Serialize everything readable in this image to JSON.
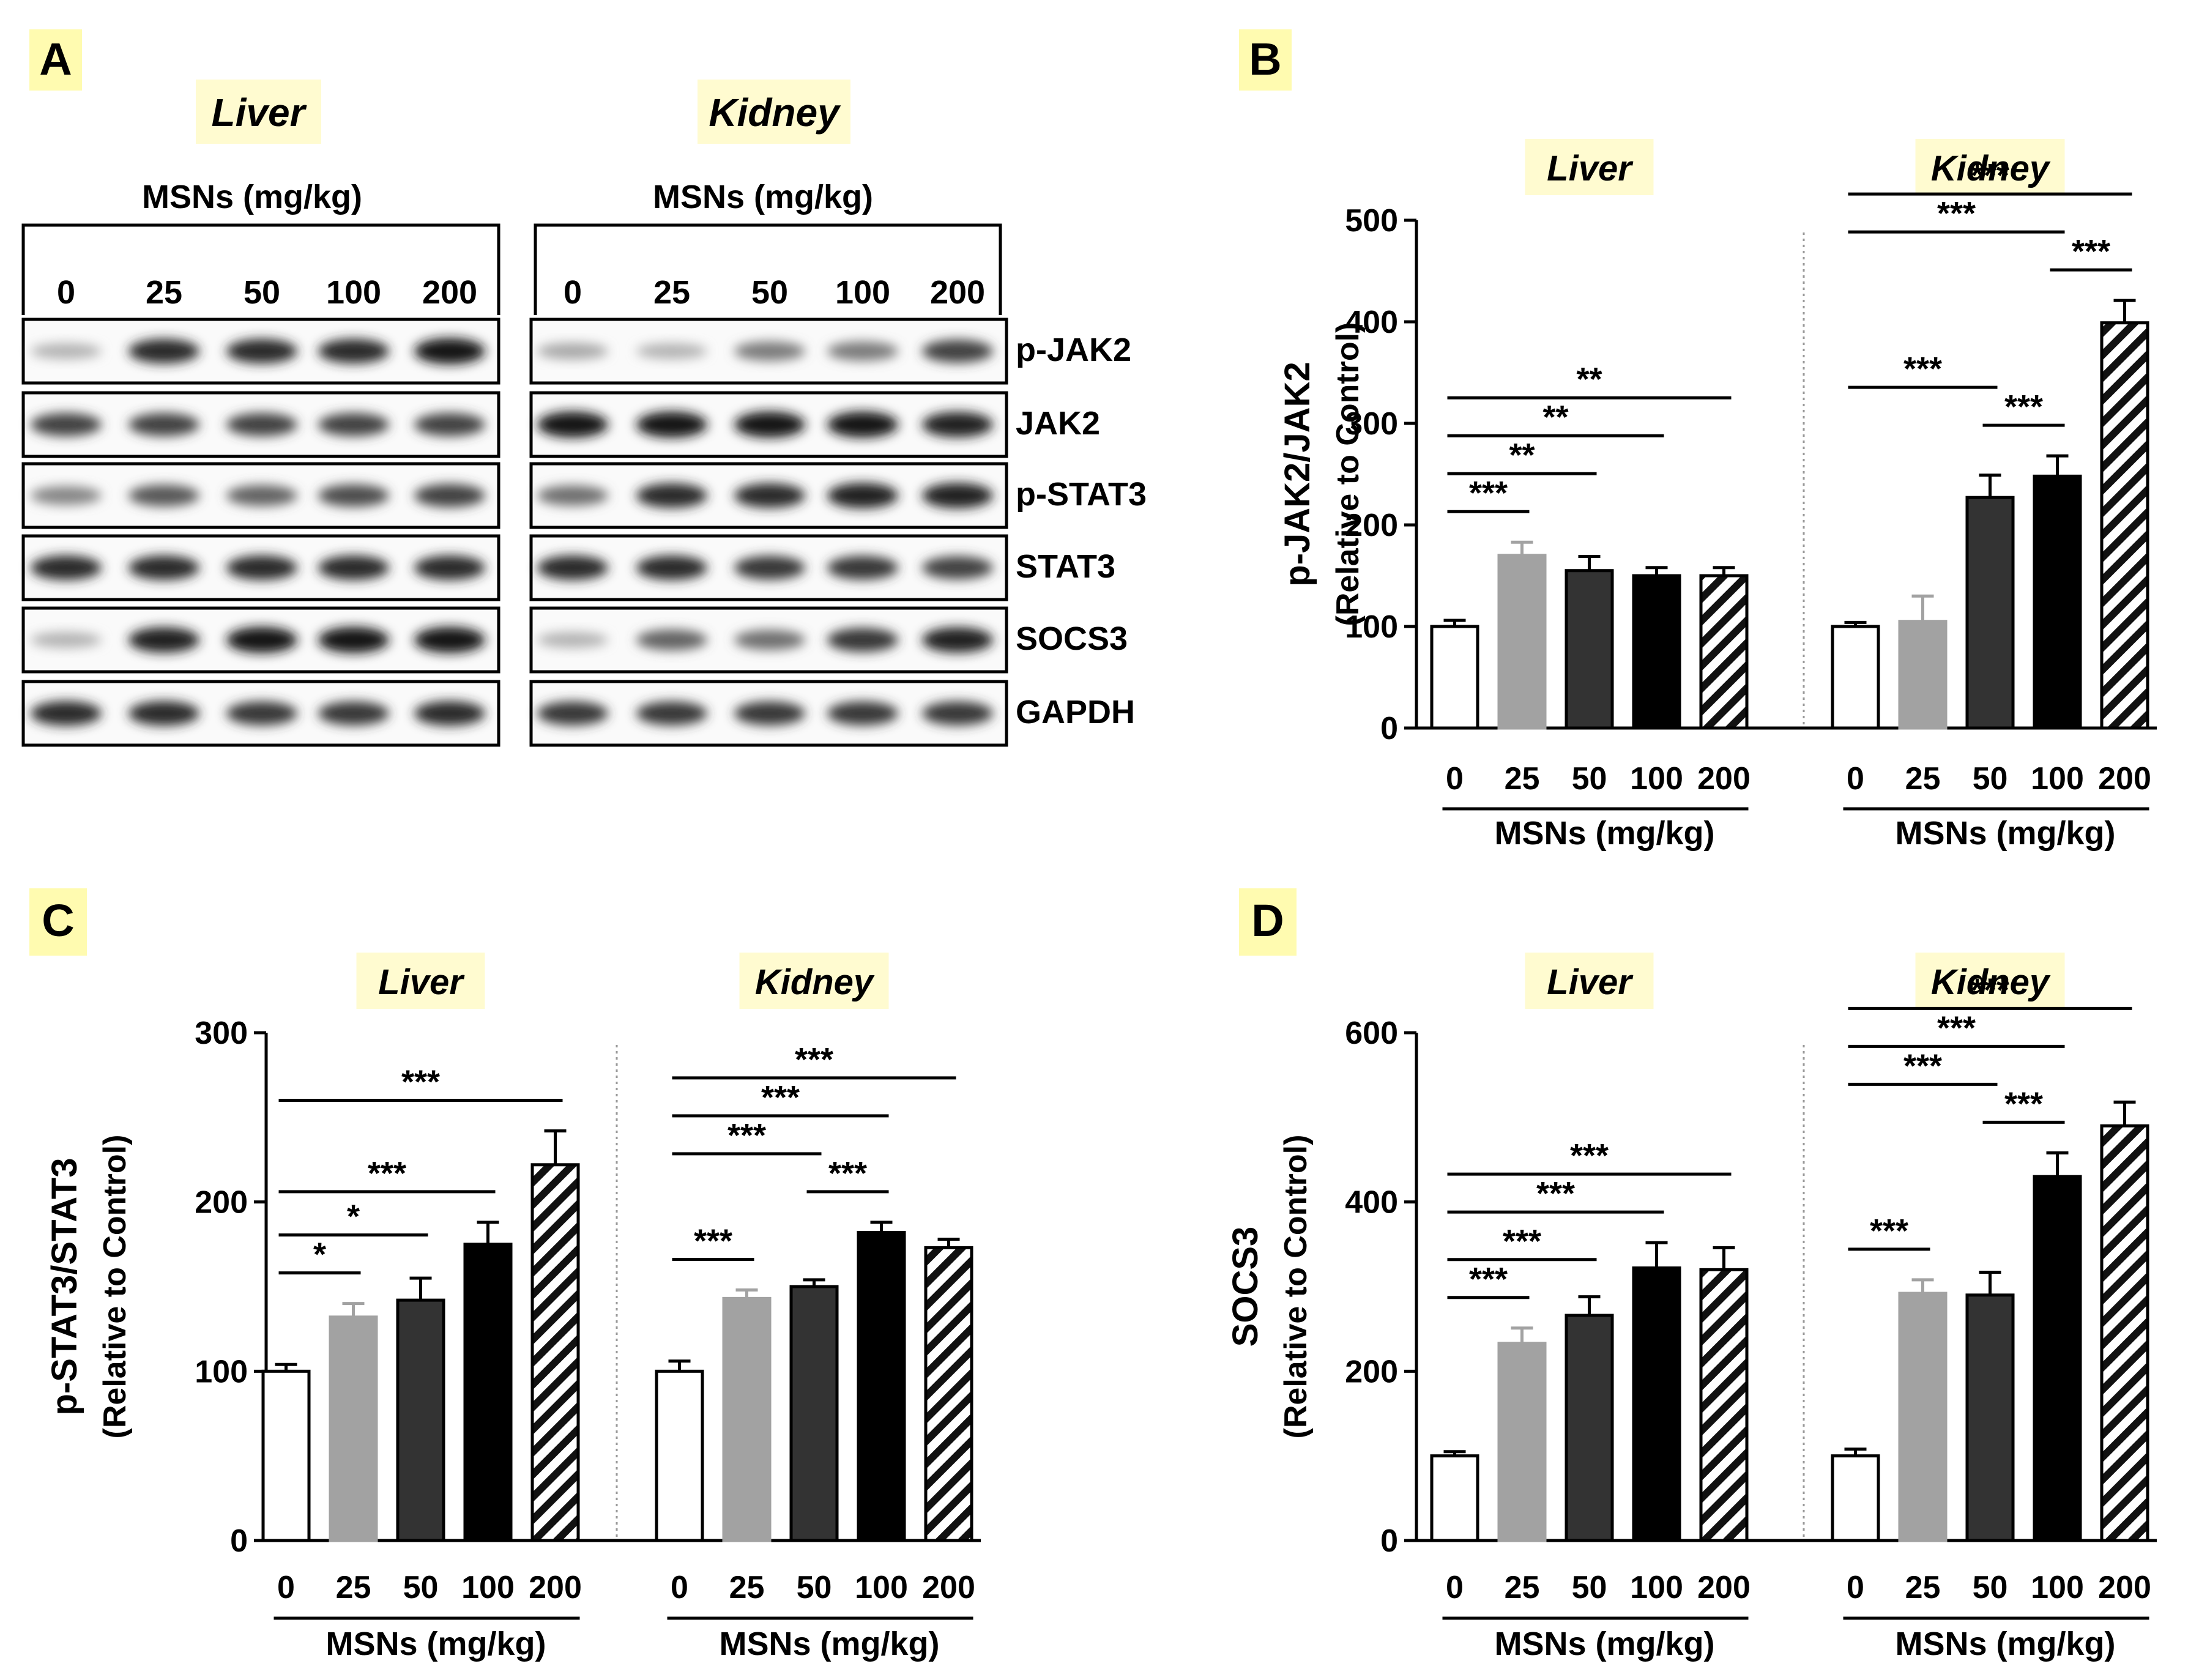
{
  "panel_a": {
    "label": "A",
    "liver_title": "Liver",
    "kidney_title": "Kidney",
    "dose_label": "MSNs (mg/kg)",
    "doses": [
      "0",
      "25",
      "50",
      "100",
      "200"
    ],
    "proteins": [
      "p-JAK2",
      "JAK2",
      "p-STAT3",
      "STAT3",
      "SOCS3",
      "GAPDH"
    ]
  },
  "chart_data": [
    {
      "panel": "B",
      "type": "bar",
      "ylabel": "p-JAK2/JAK2",
      "ylabel2": "(Relative to Control)",
      "ylim": [
        0,
        500
      ],
      "yticks": [
        "0",
        "100",
        "200",
        "300",
        "400",
        "500"
      ],
      "groups": [
        {
          "name": "Liver",
          "categories": [
            "0",
            "25",
            "50",
            "100",
            "200"
          ],
          "values": [
            100,
            170,
            155,
            150,
            150
          ],
          "errors": [
            6,
            13,
            14,
            8,
            8
          ],
          "xlabel": "MSNs (mg/kg)",
          "significance": [
            {
              "from": 0,
              "to": 1,
              "label": "***"
            },
            {
              "from": 0,
              "to": 2,
              "label": "**"
            },
            {
              "from": 0,
              "to": 3,
              "label": "**"
            },
            {
              "from": 0,
              "to": 4,
              "label": "**"
            }
          ]
        },
        {
          "name": "Kidney",
          "categories": [
            "0",
            "25",
            "50",
            "100",
            "200"
          ],
          "values": [
            100,
            105,
            227,
            248,
            399
          ],
          "errors": [
            4,
            25,
            22,
            20,
            22
          ],
          "xlabel": "MSNs (mg/kg)",
          "significance": [
            {
              "from": 0,
              "to": 4,
              "label": "***"
            },
            {
              "from": 3,
              "to": 4,
              "label": "***"
            },
            {
              "from": 0,
              "to": 3,
              "label": "***"
            },
            {
              "from": 0,
              "to": 2,
              "label": "***"
            },
            {
              "from": 2,
              "to": 3,
              "label": "***"
            }
          ]
        }
      ]
    },
    {
      "panel": "C",
      "type": "bar",
      "ylabel": "p-STAT3/STAT3",
      "ylabel2": "(Relative to Control)",
      "ylim": [
        0,
        300
      ],
      "yticks": [
        "0",
        "100",
        "200",
        "300"
      ],
      "groups": [
        {
          "name": "Liver",
          "categories": [
            "0",
            "25",
            "50",
            "100",
            "200"
          ],
          "values": [
            100,
            132,
            142,
            175,
            222
          ],
          "errors": [
            4,
            8,
            13,
            13,
            20
          ],
          "xlabel": "MSNs (mg/kg)",
          "significance": [
            {
              "from": 0,
              "to": 4,
              "label": "***"
            },
            {
              "from": 0,
              "to": 3,
              "label": "***"
            },
            {
              "from": 0,
              "to": 2,
              "label": "*"
            },
            {
              "from": 0,
              "to": 1,
              "label": "*"
            }
          ]
        },
        {
          "name": "Kidney",
          "categories": [
            "0",
            "25",
            "50",
            "100",
            "200"
          ],
          "values": [
            100,
            143,
            150,
            182,
            173
          ],
          "errors": [
            6,
            5,
            4,
            6,
            5
          ],
          "xlabel": "MSNs (mg/kg)",
          "significance": [
            {
              "from": 0,
              "to": 4,
              "label": "***"
            },
            {
              "from": 0,
              "to": 3,
              "label": "***"
            },
            {
              "from": 2,
              "to": 3,
              "label": "***"
            },
            {
              "from": 0,
              "to": 2,
              "label": "***"
            },
            {
              "from": 0,
              "to": 1,
              "label": "***"
            }
          ]
        }
      ]
    },
    {
      "panel": "D",
      "type": "bar",
      "ylabel": "SOCS3",
      "ylabel2": "(Relative to Control)",
      "ylim": [
        0,
        600
      ],
      "yticks": [
        "0",
        "200",
        "400",
        "600"
      ],
      "groups": [
        {
          "name": "Liver",
          "categories": [
            "0",
            "25",
            "50",
            "100",
            "200"
          ],
          "values": [
            100,
            233,
            266,
            322,
            320
          ],
          "errors": [
            5,
            18,
            22,
            30,
            26
          ],
          "xlabel": "MSNs (mg/kg)",
          "significance": [
            {
              "from": 0,
              "to": 4,
              "label": "***"
            },
            {
              "from": 0,
              "to": 3,
              "label": "***"
            },
            {
              "from": 0,
              "to": 2,
              "label": "***"
            },
            {
              "from": 0,
              "to": 1,
              "label": "***"
            }
          ]
        },
        {
          "name": "Kidney",
          "categories": [
            "0",
            "25",
            "50",
            "100",
            "200"
          ],
          "values": [
            100,
            292,
            290,
            430,
            490
          ],
          "errors": [
            8,
            16,
            27,
            28,
            28
          ],
          "xlabel": "MSNs (mg/kg)",
          "significance": [
            {
              "from": 0,
              "to": 4,
              "label": "***"
            },
            {
              "from": 0,
              "to": 3,
              "label": "***"
            },
            {
              "from": 2,
              "to": 3,
              "label": "***"
            },
            {
              "from": 0,
              "to": 2,
              "label": "***"
            },
            {
              "from": 0,
              "to": 1,
              "label": "***"
            }
          ]
        }
      ]
    }
  ],
  "blots": {
    "liver": [
      [
        0.25,
        0.85,
        0.85,
        0.85,
        0.95
      ],
      [
        0.75,
        0.75,
        0.75,
        0.75,
        0.75
      ],
      [
        0.45,
        0.65,
        0.6,
        0.7,
        0.75
      ],
      [
        0.85,
        0.85,
        0.85,
        0.85,
        0.85
      ],
      [
        0.25,
        0.9,
        0.95,
        0.95,
        0.95
      ],
      [
        0.85,
        0.85,
        0.8,
        0.8,
        0.85
      ]
    ],
    "kidney": [
      [
        0.3,
        0.25,
        0.5,
        0.5,
        0.75
      ],
      [
        0.95,
        0.95,
        0.95,
        0.95,
        0.9
      ],
      [
        0.55,
        0.85,
        0.85,
        0.9,
        0.9
      ],
      [
        0.85,
        0.85,
        0.8,
        0.8,
        0.75
      ],
      [
        0.25,
        0.6,
        0.55,
        0.8,
        0.9
      ],
      [
        0.8,
        0.8,
        0.8,
        0.8,
        0.8
      ]
    ]
  },
  "colors": {
    "bar_fills": [
      "#ffffff",
      "#a2a2a2",
      "#333333",
      "#000000",
      "hatch"
    ],
    "highlight": "#fffbb0"
  }
}
